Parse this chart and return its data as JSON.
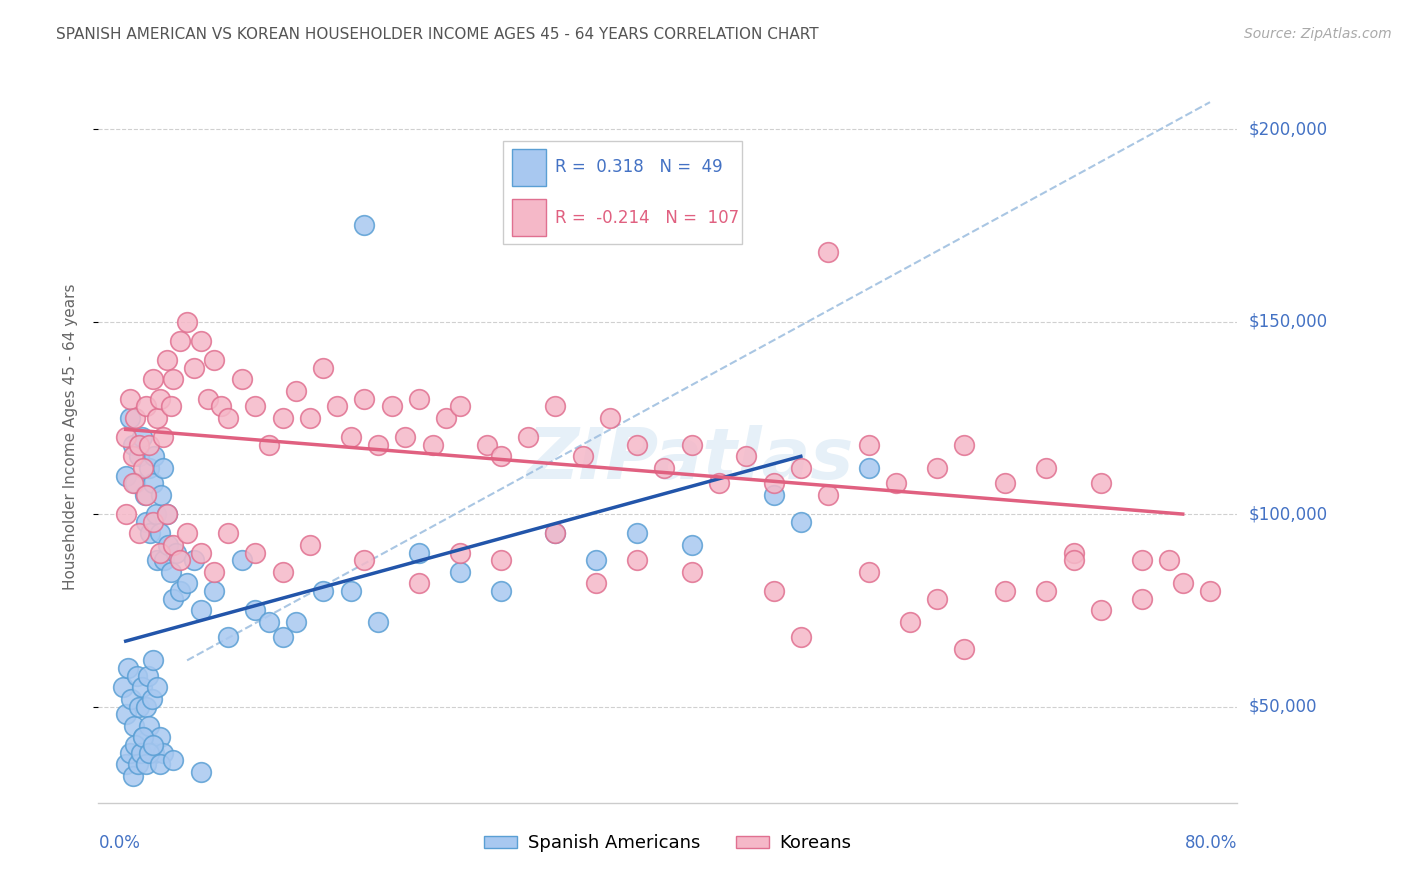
{
  "title": "SPANISH AMERICAN VS KOREAN HOUSEHOLDER INCOME AGES 45 - 64 YEARS CORRELATION CHART",
  "source": "Source: ZipAtlas.com",
  "ylabel": "Householder Income Ages 45 - 64 years",
  "xlim": [
    -1.5,
    82
  ],
  "ylim": [
    25000,
    215000
  ],
  "yticks": [
    50000,
    100000,
    150000,
    200000
  ],
  "ytick_labels": [
    "$50,000",
    "$100,000",
    "$150,000",
    "$200,000"
  ],
  "blue_R": "0.318",
  "blue_N": "49",
  "pink_R": "-0.214",
  "pink_N": "107",
  "blue_color": "#a8c8f0",
  "blue_edge": "#5a9fd4",
  "pink_color": "#f5b8c8",
  "pink_edge": "#e07090",
  "blue_line_color": "#2255aa",
  "pink_line_color": "#e06080",
  "dash_line_color": "#a0c0e0",
  "watermark": "ZIPatlas",
  "title_color": "#555555",
  "axis_label_color": "#4472c4",
  "ylabel_color": "#666666",
  "blue_trend_x0": 0.5,
  "blue_trend_y0": 67000,
  "blue_trend_x1": 50,
  "blue_trend_y1": 115000,
  "pink_trend_x0": 0.5,
  "pink_trend_y0": 122000,
  "pink_trend_x1": 78,
  "pink_trend_y1": 100000,
  "dash_x0": 5,
  "dash_y0": 62000,
  "dash_x1": 80,
  "dash_y1": 207000,
  "blue_scatter_x": [
    0.5,
    0.8,
    1.0,
    1.2,
    1.5,
    1.7,
    1.9,
    2.0,
    2.2,
    2.3,
    2.5,
    2.6,
    2.7,
    2.8,
    3.0,
    3.1,
    3.2,
    3.3,
    3.5,
    3.6,
    3.8,
    4.0,
    4.2,
    4.5,
    5.0,
    5.5,
    6.0,
    7.0,
    8.0,
    9.0,
    10.0,
    11.0,
    12.0,
    13.0,
    15.0,
    17.0,
    19.0,
    22.0,
    25.0,
    28.0,
    32.0,
    35.0,
    38.0,
    42.0,
    48.0,
    50.0,
    55.0
  ],
  "blue_scatter_y": [
    110000,
    125000,
    118000,
    108000,
    115000,
    120000,
    105000,
    98000,
    112000,
    95000,
    108000,
    115000,
    100000,
    88000,
    95000,
    105000,
    112000,
    88000,
    100000,
    92000,
    85000,
    78000,
    90000,
    80000,
    82000,
    88000,
    75000,
    80000,
    68000,
    88000,
    75000,
    72000,
    68000,
    72000,
    80000,
    80000,
    72000,
    90000,
    85000,
    80000,
    95000,
    88000,
    95000,
    92000,
    105000,
    98000,
    112000
  ],
  "blue_scatter_x2": [
    0.3,
    0.5,
    0.7,
    0.9,
    1.1,
    1.3,
    1.5,
    1.7,
    1.8,
    2.0,
    2.1,
    2.2,
    2.4,
    2.5,
    2.6,
    2.8,
    3.0,
    3.2
  ],
  "blue_scatter_y2": [
    55000,
    48000,
    60000,
    52000,
    45000,
    58000,
    50000,
    55000,
    42000,
    50000,
    58000,
    45000,
    52000,
    62000,
    38000,
    55000,
    42000,
    38000
  ],
  "blue_low_x": [
    0.5,
    0.8,
    1.0,
    1.2,
    1.4,
    1.6,
    1.8,
    2.0,
    2.2,
    2.5,
    3.0,
    4.0,
    6.0
  ],
  "blue_low_y": [
    35000,
    38000,
    32000,
    40000,
    35000,
    38000,
    42000,
    35000,
    38000,
    40000,
    35000,
    36000,
    33000
  ],
  "pink_scatter_x": [
    0.5,
    0.8,
    1.0,
    1.2,
    1.5,
    1.8,
    2.0,
    2.2,
    2.5,
    2.8,
    3.0,
    3.2,
    3.5,
    3.8,
    4.0,
    4.5,
    5.0,
    5.5,
    6.0,
    6.5,
    7.0,
    7.5,
    8.0,
    9.0,
    10.0,
    11.0,
    12.0,
    13.0,
    14.0,
    15.0,
    16.0,
    17.0,
    18.0,
    19.0,
    20.0,
    21.0,
    22.0,
    23.0,
    24.0,
    25.0,
    27.0,
    28.0,
    30.0,
    32.0,
    34.0,
    36.0,
    38.0,
    40.0,
    42.0,
    44.0,
    46.0,
    48.0,
    50.0,
    52.0,
    55.0,
    57.0,
    60.0,
    62.0,
    65.0,
    68.0,
    70.0,
    72.0,
    75.0,
    77.0
  ],
  "pink_scatter_y": [
    120000,
    130000,
    115000,
    125000,
    118000,
    112000,
    128000,
    118000,
    135000,
    125000,
    130000,
    120000,
    140000,
    128000,
    135000,
    145000,
    150000,
    138000,
    145000,
    130000,
    140000,
    128000,
    125000,
    135000,
    128000,
    118000,
    125000,
    132000,
    125000,
    138000,
    128000,
    120000,
    130000,
    118000,
    128000,
    120000,
    130000,
    118000,
    125000,
    128000,
    118000,
    115000,
    120000,
    128000,
    115000,
    125000,
    118000,
    112000,
    118000,
    108000,
    115000,
    108000,
    112000,
    105000,
    118000,
    108000,
    112000,
    118000,
    108000,
    112000,
    90000,
    108000,
    88000,
    88000
  ],
  "pink_below_x": [
    0.5,
    1.0,
    1.5,
    2.0,
    2.5,
    3.0,
    3.5,
    4.0,
    4.5,
    5.0,
    6.0,
    7.0,
    8.0,
    10.0,
    12.0,
    14.0,
    18.0,
    22.0,
    25.0,
    28.0,
    32.0,
    35.0,
    38.0,
    42.0,
    48.0,
    55.0,
    60.0,
    65.0,
    70.0,
    75.0,
    78.0,
    80.0,
    50.0,
    58.0,
    62.0,
    68.0,
    72.0
  ],
  "pink_below_y": [
    100000,
    108000,
    95000,
    105000,
    98000,
    90000,
    100000,
    92000,
    88000,
    95000,
    90000,
    85000,
    95000,
    90000,
    85000,
    92000,
    88000,
    82000,
    90000,
    88000,
    95000,
    82000,
    88000,
    85000,
    80000,
    85000,
    78000,
    80000,
    88000,
    78000,
    82000,
    80000,
    68000,
    72000,
    65000,
    80000,
    75000
  ],
  "single_blue_high_x": 18,
  "single_blue_high_y": 175000,
  "single_pink_high_x": 52,
  "single_pink_high_y": 168000
}
